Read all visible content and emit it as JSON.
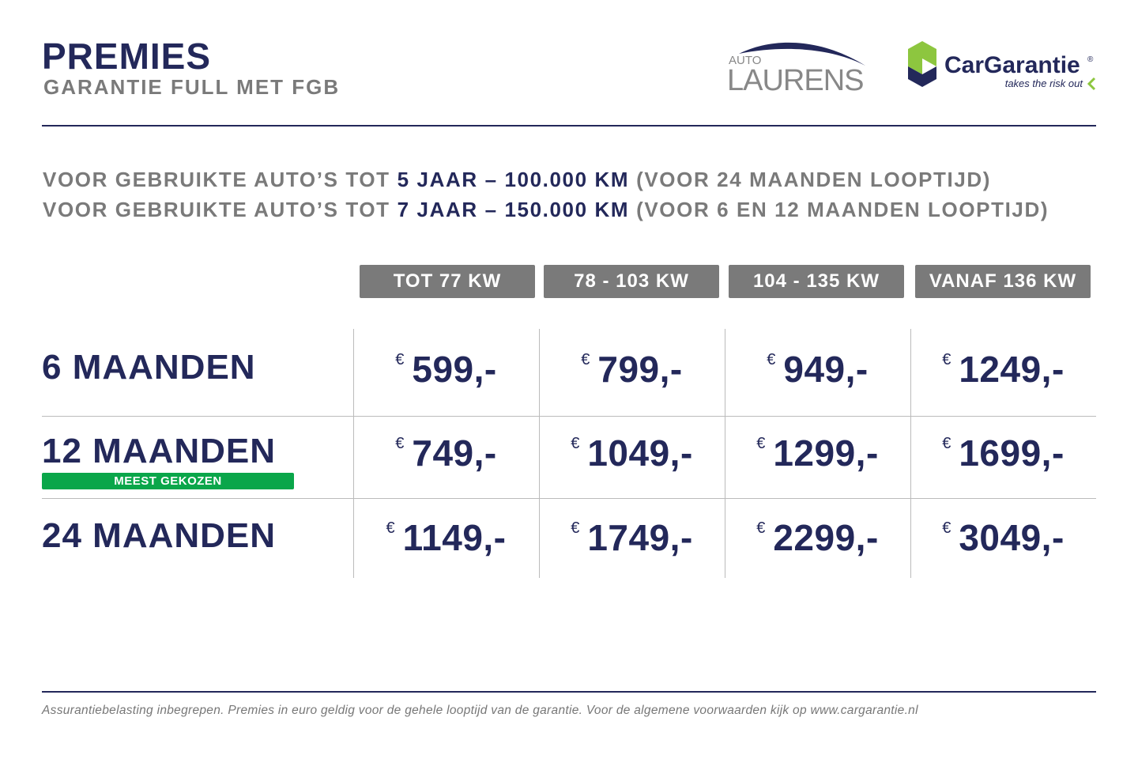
{
  "header": {
    "title": "PREMIES",
    "subtitle": "GARANTIE FULL MET FGB"
  },
  "logos": {
    "auto_laurens": {
      "small": "AUTO",
      "big": "LAURENS"
    },
    "cargarantie": {
      "name": "CarGarantie",
      "mark": "®",
      "tagline": "takes the risk out"
    }
  },
  "intro": [
    {
      "prefix": "VOOR GEBRUIKTE AUTO’S TOT",
      "highlight": "5 JAAR – 100.000 KM",
      "suffix": "(VOOR 24 MAANDEN LOOPTIJD)"
    },
    {
      "prefix": "VOOR GEBRUIKTE AUTO’S TOT",
      "highlight": "7 JAAR – 150.000 KM",
      "suffix": "(VOOR 6 EN 12 MAANDEN LOOPTIJD)"
    }
  ],
  "table": {
    "currency": "€",
    "columns": [
      "TOT 77 KW",
      "78 - 103 KW",
      "104 - 135 KW",
      "VANAF 136 KW"
    ],
    "rows": [
      {
        "label": "6 MAANDEN",
        "prices": [
          "599,-",
          "799,-",
          "949,-",
          "1249,-"
        ]
      },
      {
        "label": "12 MAANDEN",
        "badge": "MEEST GEKOZEN",
        "prices": [
          "749,-",
          "1049,-",
          "1299,-",
          "1699,-"
        ]
      },
      {
        "label": "24 MAANDEN",
        "prices": [
          "1149,-",
          "1749,-",
          "2299,-",
          "3049,-"
        ]
      }
    ]
  },
  "footer": {
    "note": "Assurantiebelasting inbegrepen. Premies in euro geldig voor de gehele looptijd van de garantie. Voor de algemene voorwaarden kijk op www.cargarantie.nl"
  }
}
